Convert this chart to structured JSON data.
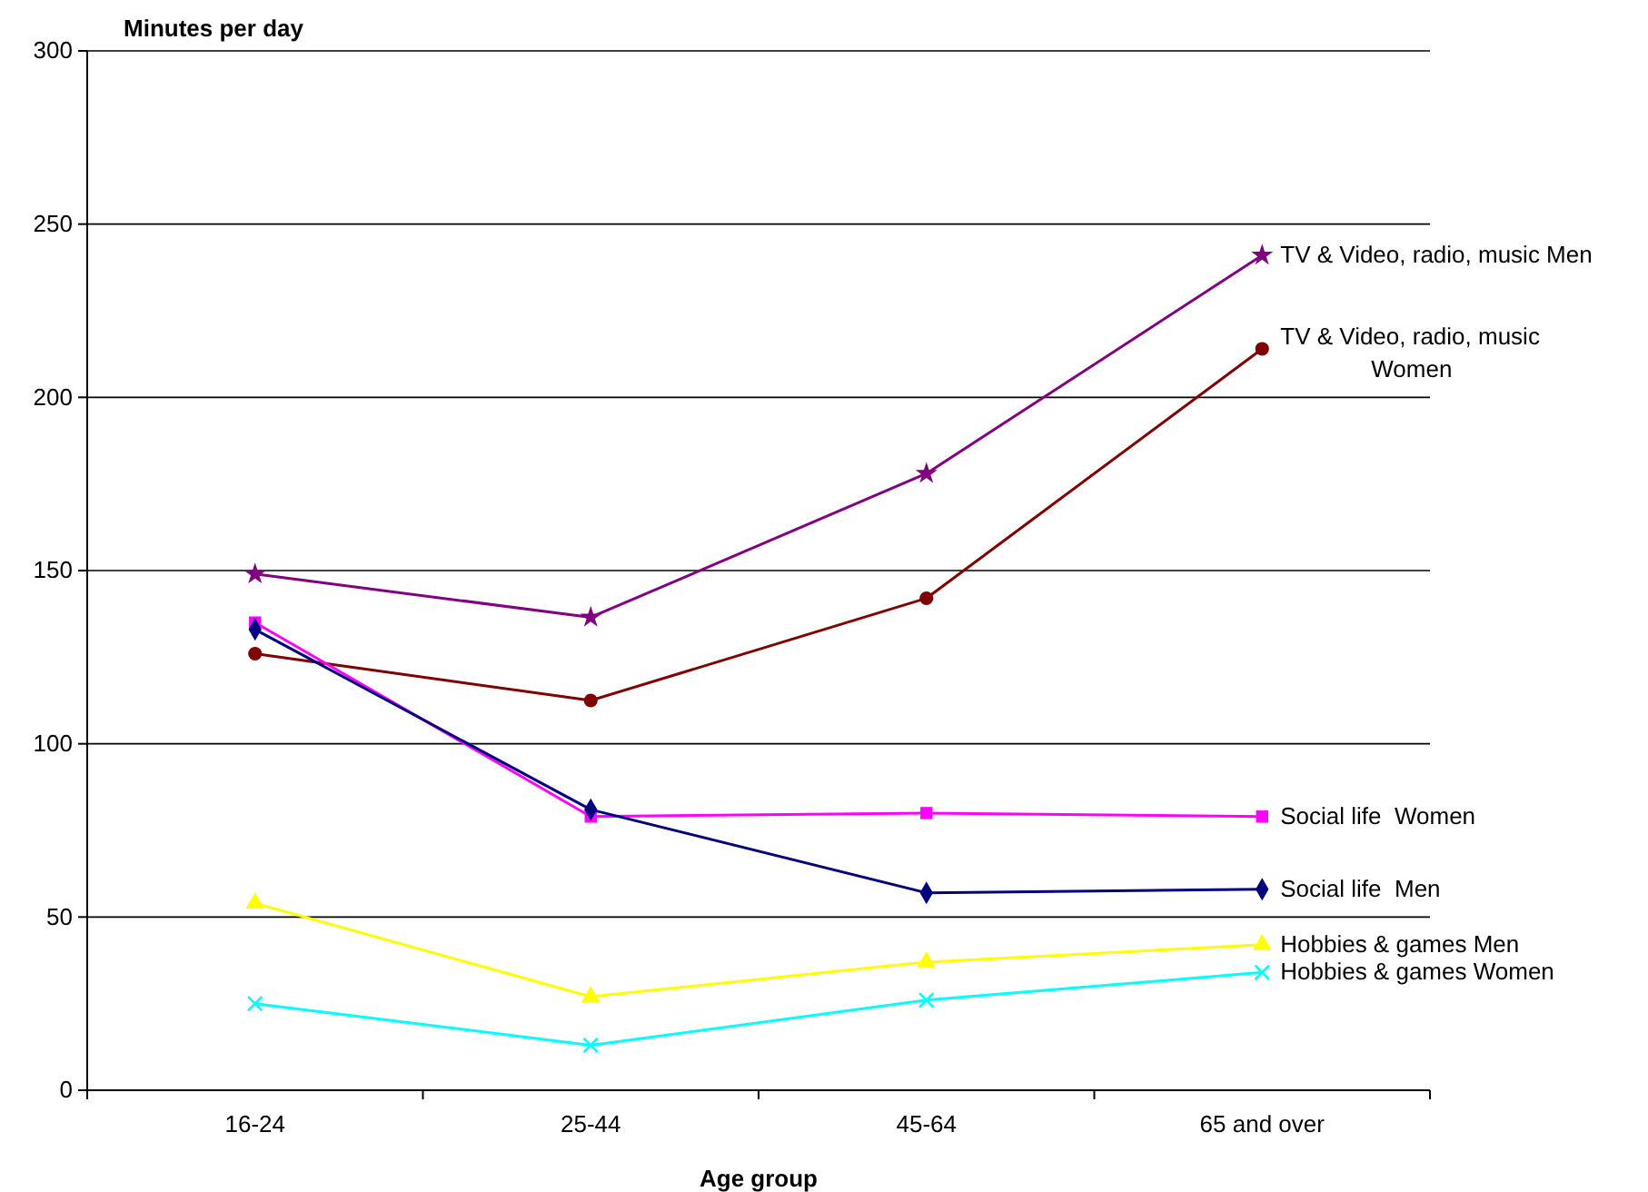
{
  "chart_data": {
    "type": "line",
    "ylabel": "Minutes per day",
    "xlabel": "Age group",
    "categories": [
      "16-24",
      "25-44",
      "45-64",
      "65 and over"
    ],
    "ylim": [
      0,
      300
    ],
    "yticks": [
      0,
      50,
      100,
      150,
      200,
      250,
      300
    ],
    "grid": "y",
    "legend": false,
    "series": [
      {
        "name": "TV & Video, radio, music Men",
        "color": "#800080",
        "marker": "star",
        "values": [
          149,
          136.5,
          178,
          241
        ]
      },
      {
        "name": "TV & Video, radio, music Women",
        "color": "#800000",
        "marker": "circle",
        "values": [
          126,
          112.5,
          142,
          214
        ]
      },
      {
        "name": "Social life  Women",
        "color": "#ff00ff",
        "marker": "square",
        "values": [
          135,
          79,
          80,
          79
        ]
      },
      {
        "name": "Social life  Men",
        "color": "#000080",
        "marker": "diamond",
        "values": [
          133,
          81,
          57,
          58
        ]
      },
      {
        "name": "Hobbies & games Men",
        "color": "#ffff00",
        "marker": "triangle",
        "values": [
          54,
          27,
          37,
          42
        ]
      },
      {
        "name": "Hobbies & games Women",
        "color": "#00ffff",
        "marker": "cross",
        "values": [
          25,
          13,
          26,
          34
        ]
      }
    ]
  }
}
